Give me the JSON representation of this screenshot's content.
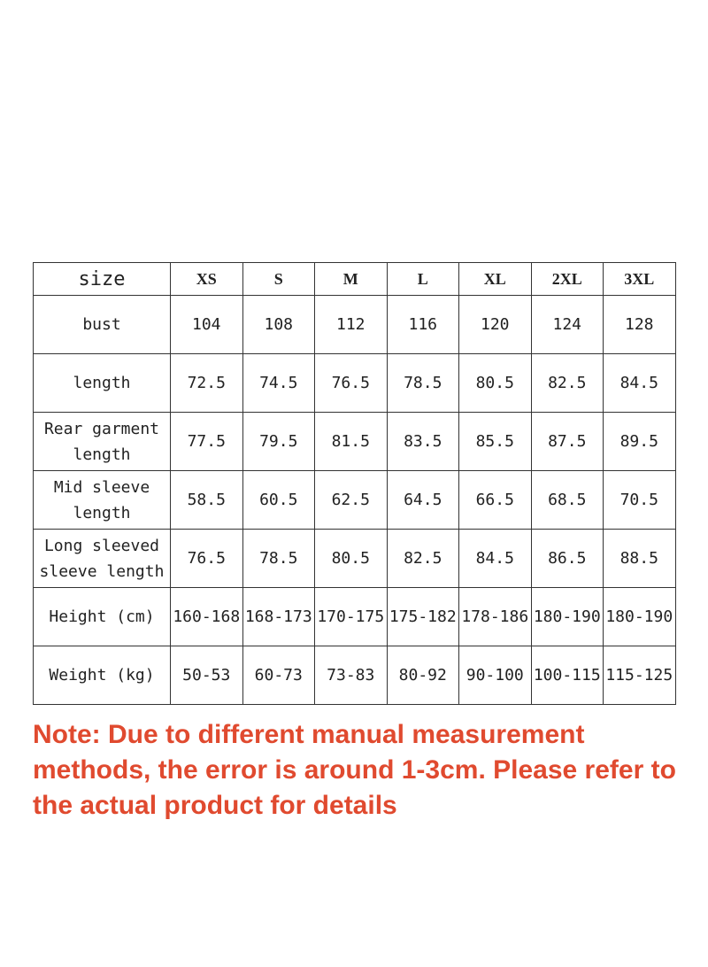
{
  "table": {
    "header_label": "size",
    "sizes": [
      "XS",
      "S",
      "M",
      "L",
      "XL",
      "2XL",
      "3XL"
    ],
    "rows": [
      {
        "label": "bust",
        "values": [
          "104",
          "108",
          "112",
          "116",
          "120",
          "124",
          "128"
        ]
      },
      {
        "label": "length",
        "values": [
          "72.5",
          "74.5",
          "76.5",
          "78.5",
          "80.5",
          "82.5",
          "84.5"
        ]
      },
      {
        "label": "Rear garment length",
        "values": [
          "77.5",
          "79.5",
          "81.5",
          "83.5",
          "85.5",
          "87.5",
          "89.5"
        ]
      },
      {
        "label": "Mid sleeve length",
        "values": [
          "58.5",
          "60.5",
          "62.5",
          "64.5",
          "66.5",
          "68.5",
          "70.5"
        ]
      },
      {
        "label": "Long sleeved sleeve length",
        "values": [
          "76.5",
          "78.5",
          "80.5",
          "82.5",
          "84.5",
          "86.5",
          "88.5"
        ]
      },
      {
        "label": "Height (cm)",
        "values": [
          "160-168",
          "168-173",
          "170-175",
          "175-182",
          "178-186",
          "180-190",
          "180-190"
        ]
      },
      {
        "label": "Weight (kg)",
        "values": [
          "50-53",
          "60-73",
          "73-83",
          "80-92",
          "90-100",
          "100-115",
          "115-125"
        ]
      }
    ]
  },
  "note": "Note: Due to different manual measurement methods, the error is around 1-3cm. Please refer to the actual product for details",
  "colors": {
    "note": "#e04a2f",
    "border": "#333333"
  }
}
